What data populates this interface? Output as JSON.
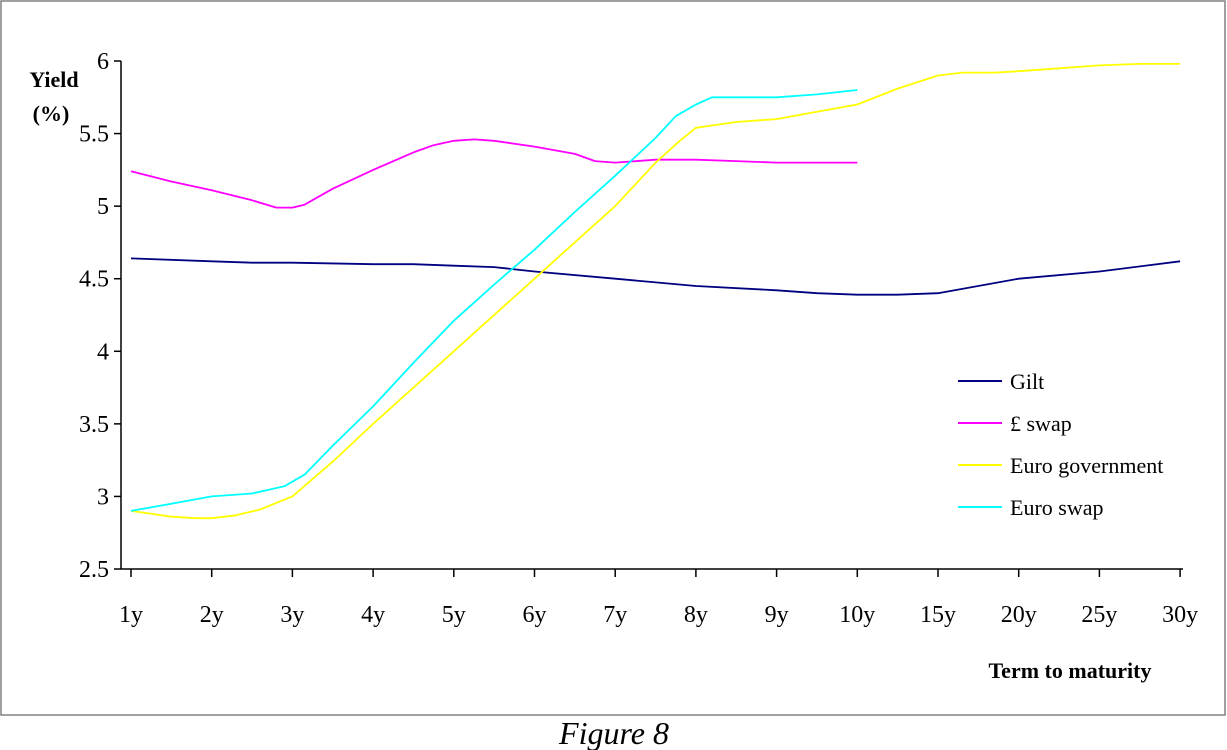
{
  "chart_data": {
    "type": "line",
    "title": "",
    "xlabel": "Term to maturity",
    "ylabel_line1": "Yield",
    "ylabel_line2": "(%)",
    "categories": [
      "1y",
      "2y",
      "3y",
      "4y",
      "5y",
      "6y",
      "7y",
      "8y",
      "9y",
      "10y",
      "15y",
      "20y",
      "25y",
      "30y"
    ],
    "y_ticks": [
      "2.5",
      "3",
      "3.5",
      "4",
      "4.5",
      "5",
      "5.5",
      "6"
    ],
    "ylim": [
      2.5,
      6.0
    ],
    "grid": false,
    "legend_position": "right",
    "series": [
      {
        "name": "Gilt",
        "color": "#000080",
        "points": [
          [
            0,
            4.64
          ],
          [
            1,
            4.62
          ],
          [
            1.5,
            4.61
          ],
          [
            2,
            4.61
          ],
          [
            3,
            4.6
          ],
          [
            3.5,
            4.6
          ],
          [
            4,
            4.59
          ],
          [
            4.5,
            4.58
          ],
          [
            5,
            4.55
          ],
          [
            6,
            4.5
          ],
          [
            7,
            4.45
          ],
          [
            8,
            4.42
          ],
          [
            8.5,
            4.4
          ],
          [
            9,
            4.39
          ],
          [
            9.5,
            4.39
          ],
          [
            10,
            4.4
          ],
          [
            11,
            4.5
          ],
          [
            12,
            4.55
          ],
          [
            13,
            4.62
          ]
        ]
      },
      {
        "name": "£ swap",
        "color": "#ff00ff",
        "points": [
          [
            0,
            5.24
          ],
          [
            0.5,
            5.17
          ],
          [
            1,
            5.11
          ],
          [
            1.5,
            5.04
          ],
          [
            1.8,
            4.99
          ],
          [
            2,
            4.99
          ],
          [
            2.15,
            5.01
          ],
          [
            2.5,
            5.12
          ],
          [
            3,
            5.25
          ],
          [
            3.5,
            5.37
          ],
          [
            3.75,
            5.42
          ],
          [
            4,
            5.45
          ],
          [
            4.25,
            5.46
          ],
          [
            4.5,
            5.45
          ],
          [
            5,
            5.41
          ],
          [
            5.5,
            5.36
          ],
          [
            5.75,
            5.31
          ],
          [
            6,
            5.3
          ],
          [
            6.5,
            5.32
          ],
          [
            7,
            5.32
          ],
          [
            7.5,
            5.31
          ],
          [
            8,
            5.3
          ],
          [
            9,
            5.3
          ]
        ]
      },
      {
        "name": "Euro government",
        "color": "#ffff00",
        "points": [
          [
            0,
            2.9
          ],
          [
            0.5,
            2.86
          ],
          [
            0.8,
            2.85
          ],
          [
            1,
            2.85
          ],
          [
            1.3,
            2.87
          ],
          [
            1.6,
            2.91
          ],
          [
            2,
            3.0
          ],
          [
            2.5,
            3.24
          ],
          [
            3,
            3.5
          ],
          [
            4,
            4.0
          ],
          [
            5,
            4.5
          ],
          [
            6,
            5.0
          ],
          [
            6.5,
            5.3
          ],
          [
            6.8,
            5.45
          ],
          [
            7,
            5.54
          ],
          [
            7.5,
            5.58
          ],
          [
            8,
            5.6
          ],
          [
            8.5,
            5.65
          ],
          [
            9,
            5.7
          ],
          [
            9.5,
            5.81
          ],
          [
            10,
            5.9
          ],
          [
            10.3,
            5.92
          ],
          [
            10.7,
            5.92
          ],
          [
            11,
            5.93
          ],
          [
            11.5,
            5.95
          ],
          [
            12,
            5.97
          ],
          [
            12.5,
            5.98
          ],
          [
            13,
            5.98
          ]
        ]
      },
      {
        "name": "Euro swap",
        "color": "#00ffff",
        "points": [
          [
            0,
            2.9
          ],
          [
            0.5,
            2.95
          ],
          [
            1,
            3.0
          ],
          [
            1.5,
            3.02
          ],
          [
            1.9,
            3.07
          ],
          [
            2.15,
            3.15
          ],
          [
            2.5,
            3.35
          ],
          [
            3,
            3.62
          ],
          [
            3.5,
            3.92
          ],
          [
            4,
            4.21
          ],
          [
            4.5,
            4.46
          ],
          [
            5,
            4.7
          ],
          [
            5.5,
            4.96
          ],
          [
            6,
            5.21
          ],
          [
            6.5,
            5.47
          ],
          [
            6.75,
            5.62
          ],
          [
            7,
            5.7
          ],
          [
            7.2,
            5.75
          ],
          [
            7.5,
            5.75
          ],
          [
            8,
            5.75
          ],
          [
            8.5,
            5.77
          ],
          [
            9,
            5.8
          ]
        ]
      }
    ]
  },
  "caption": "Figure 8"
}
